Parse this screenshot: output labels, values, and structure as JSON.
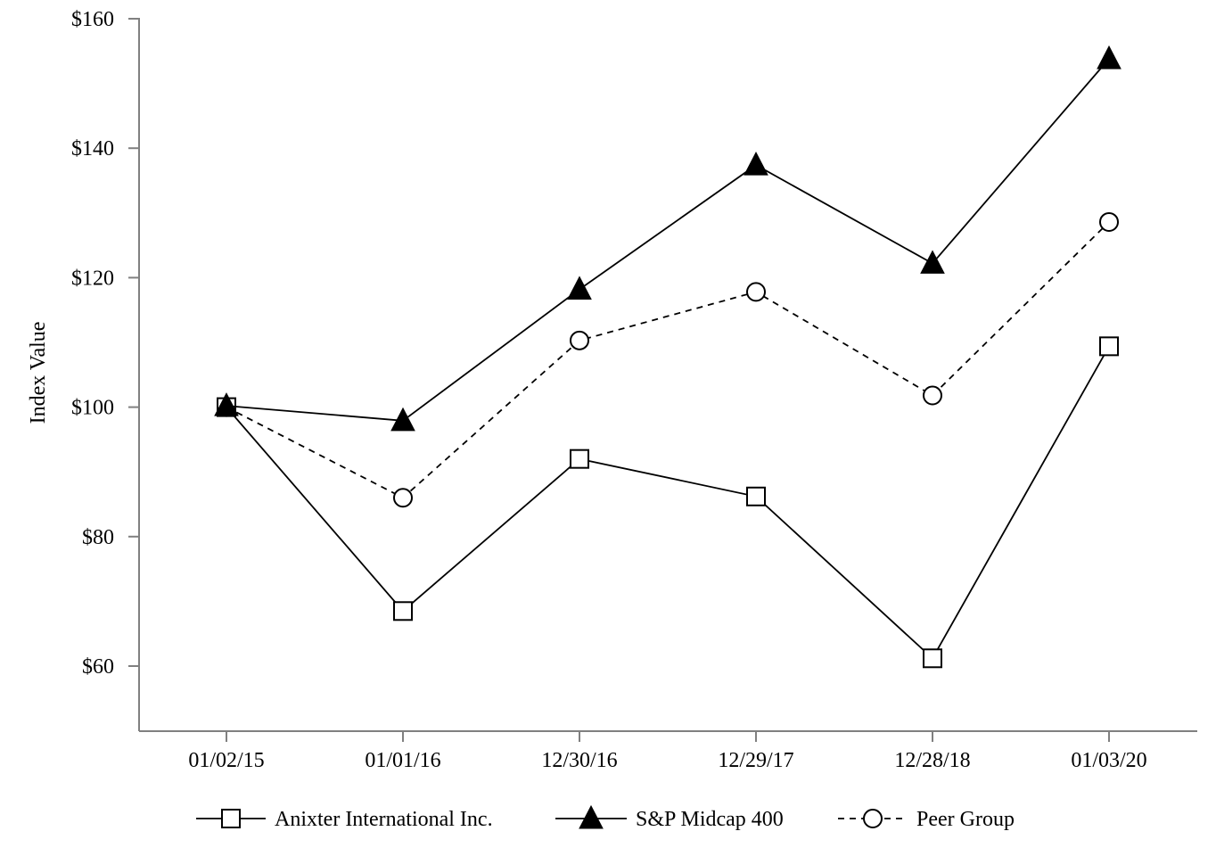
{
  "chart_data": {
    "type": "line",
    "title": "",
    "xlabel": "",
    "ylabel": "Index Value",
    "categories": [
      "01/02/15",
      "01/01/16",
      "12/30/16",
      "12/29/17",
      "12/28/18",
      "01/03/20"
    ],
    "y_ticks": [
      60,
      80,
      100,
      120,
      140,
      160
    ],
    "y_tick_labels": [
      "$60",
      "$80",
      "$100",
      "$120",
      "$140",
      "$160"
    ],
    "ylim": [
      50,
      160
    ],
    "grid": false,
    "legend_position": "bottom",
    "series": [
      {
        "name": "Anixter International Inc.",
        "marker": "open-square",
        "line_style": "solid",
        "values": [
          100,
          68.5,
          92,
          86.2,
          61.2,
          109.4
        ]
      },
      {
        "name": "S&P Midcap 400",
        "marker": "filled-triangle",
        "line_style": "solid",
        "values": [
          100.2,
          97.9,
          118.2,
          137.4,
          122.2,
          153.8
        ]
      },
      {
        "name": "Peer Group",
        "marker": "open-circle",
        "line_style": "dashed",
        "values": [
          100,
          86,
          110.3,
          117.8,
          101.8,
          128.6
        ]
      }
    ],
    "colors": {
      "line": "#000000",
      "axis": "#808080",
      "background": "#ffffff"
    }
  }
}
